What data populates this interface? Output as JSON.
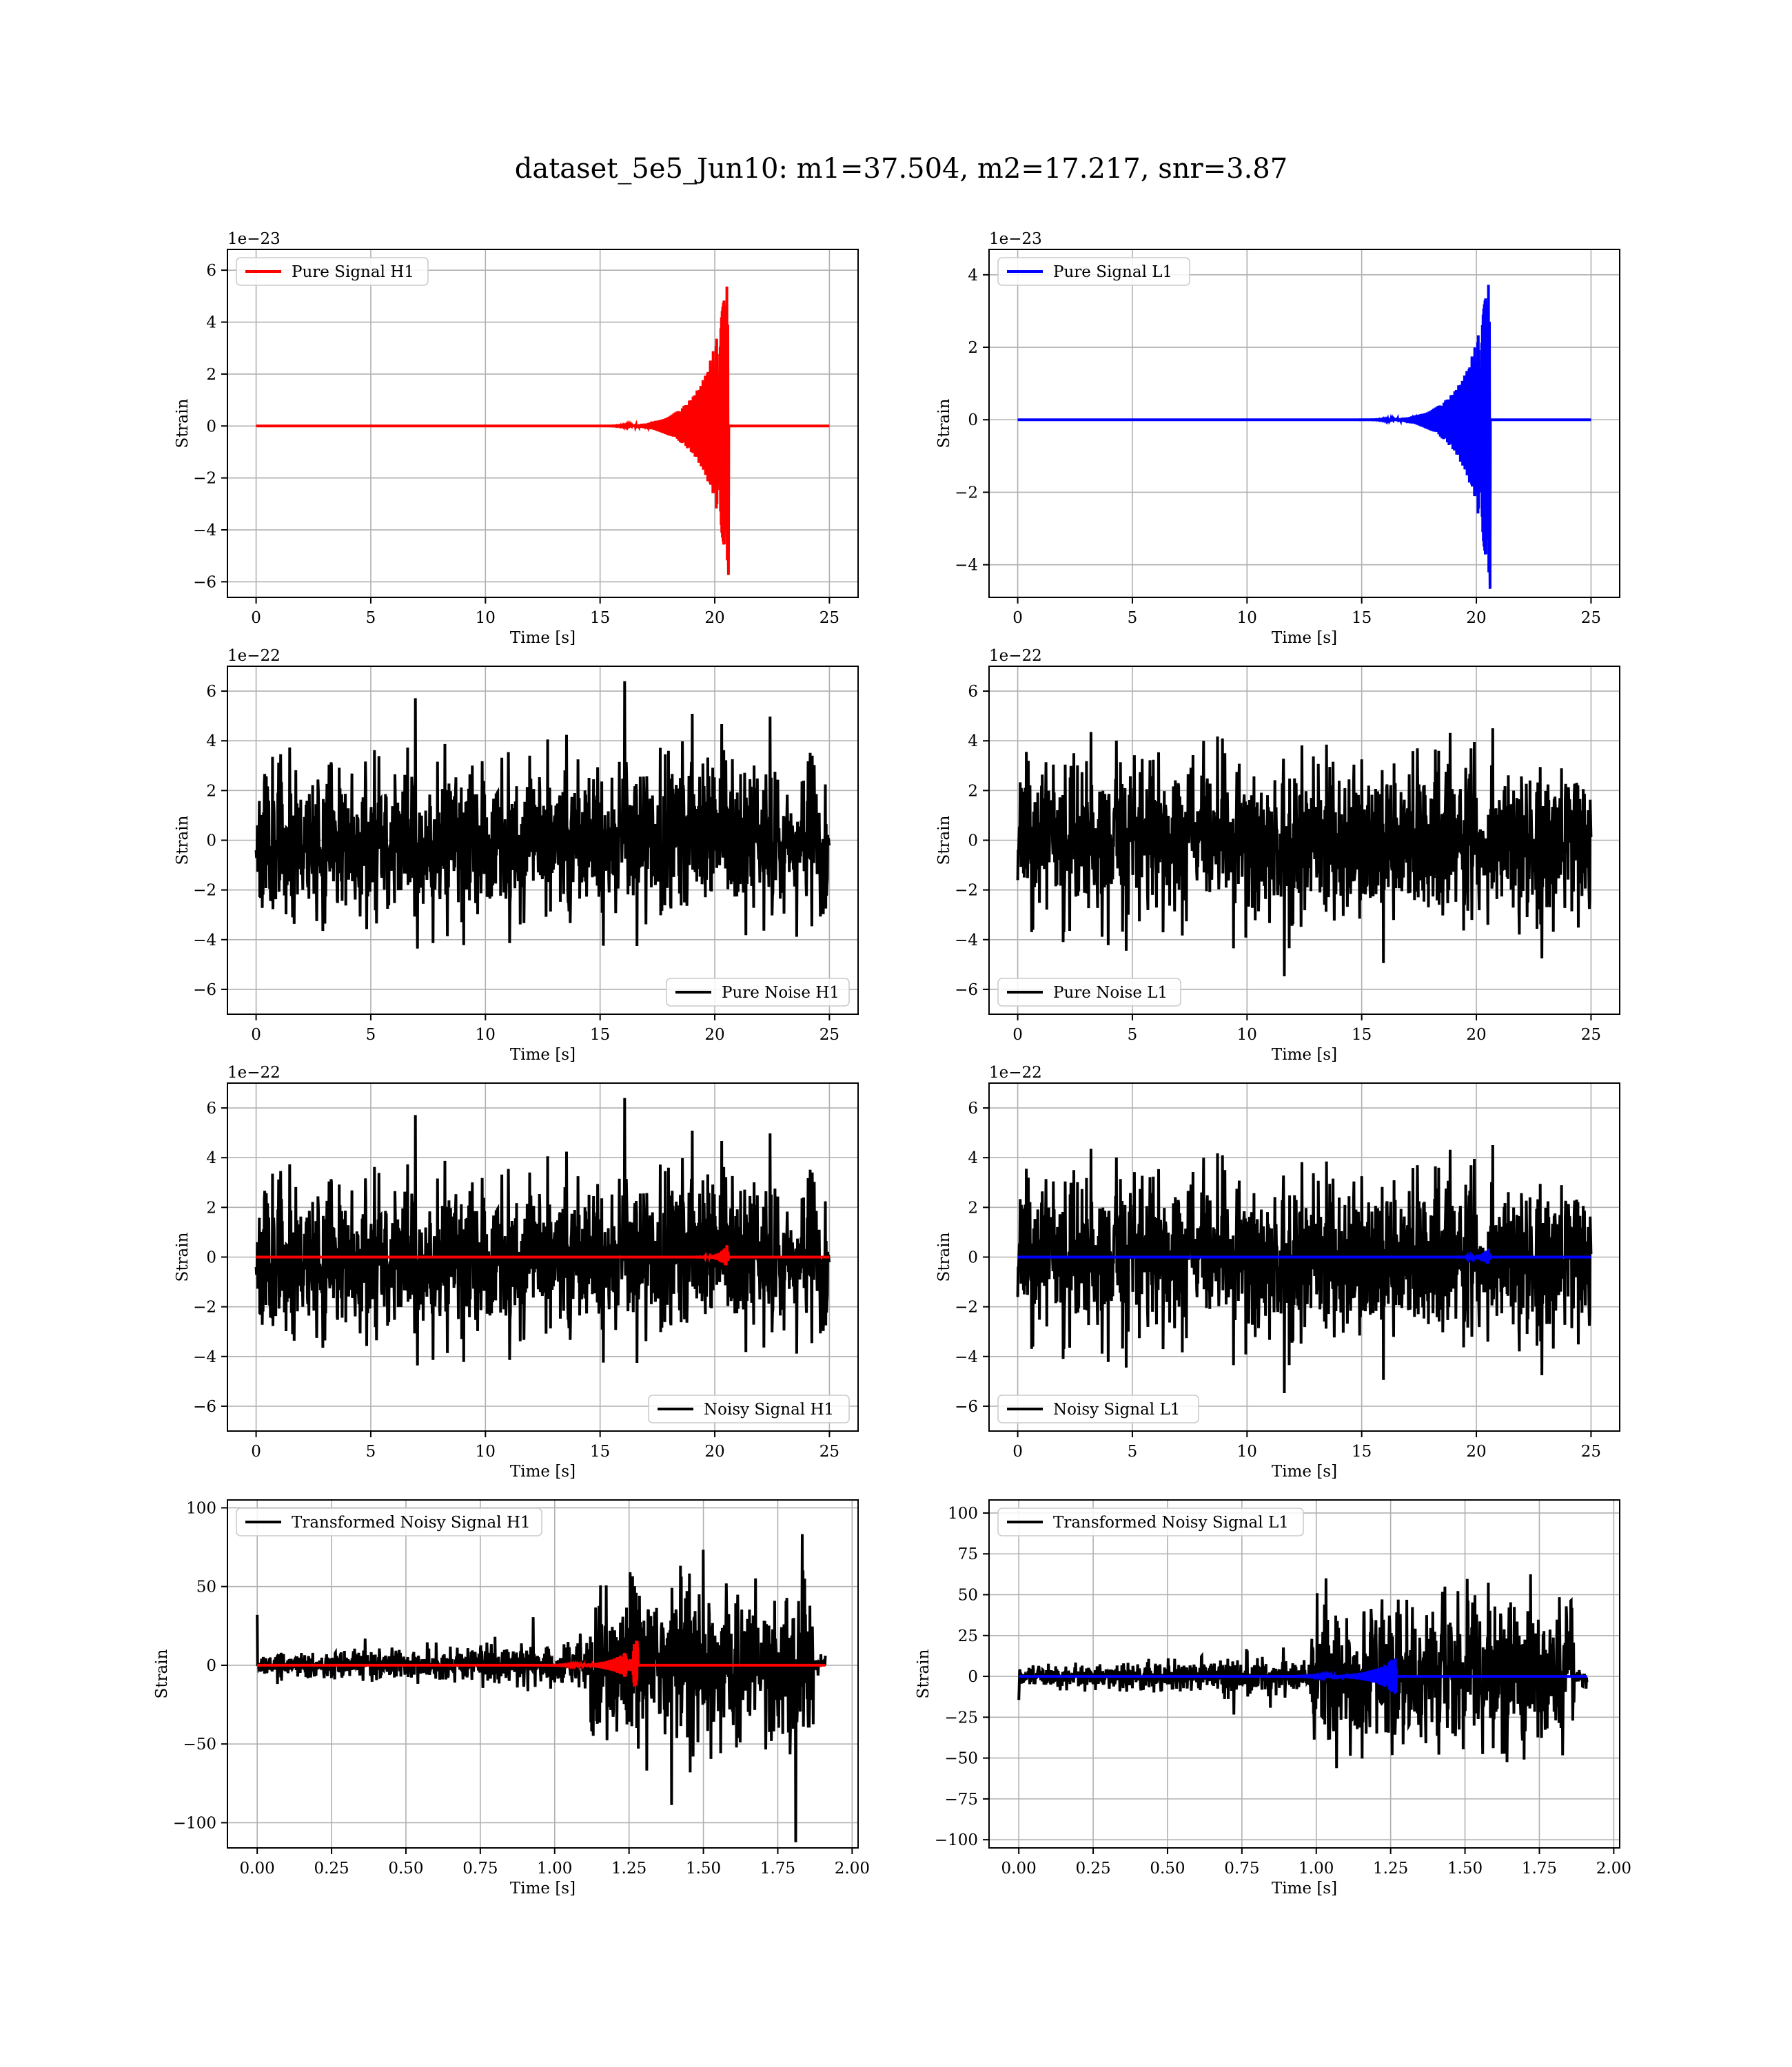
{
  "figure": {
    "title": "dataset_5e5_Jun10: m1=37.504, m2=17.217, snr=3.87"
  },
  "chart_data": [
    {
      "type": "line",
      "panel": "pure-signal-h1",
      "xlabel": "Time [s]",
      "ylabel": "Strain",
      "offset_text": "1e−23",
      "xlim": [
        -1.25,
        26.25
      ],
      "ylim": [
        -6.6,
        6.8
      ],
      "xticks": [
        0,
        5,
        10,
        15,
        20,
        25
      ],
      "xtick_labels": [
        "0",
        "5",
        "10",
        "15",
        "20",
        "25"
      ],
      "yticks": [
        -6,
        -4,
        -2,
        0,
        2,
        4,
        6
      ],
      "ytick_labels": [
        "−6",
        "−4",
        "−2",
        "0",
        "2",
        "4",
        "6"
      ],
      "grid": true,
      "legend_position": "upper left",
      "series": [
        {
          "name": "Pure Signal H1",
          "color": "#ff0000",
          "kind": "chirp",
          "params": {
            "t0": 0,
            "t1": 25,
            "tc": 20.6,
            "peak": 6.2,
            "trough": -5.9,
            "noise": 0,
            "onset": 0.72
          }
        }
      ]
    },
    {
      "type": "line",
      "panel": "pure-signal-l1",
      "xlabel": "Time [s]",
      "ylabel": "Strain",
      "offset_text": "1e−23",
      "xlim": [
        -1.25,
        26.25
      ],
      "ylim": [
        -4.9,
        4.7
      ],
      "xticks": [
        0,
        5,
        10,
        15,
        20,
        25
      ],
      "xtick_labels": [
        "0",
        "5",
        "10",
        "15",
        "20",
        "25"
      ],
      "yticks": [
        -4,
        -2,
        0,
        2,
        4
      ],
      "ytick_labels": [
        "−4",
        "−2",
        "0",
        "2",
        "4"
      ],
      "grid": true,
      "legend_position": "upper left",
      "series": [
        {
          "name": "Pure Signal L1",
          "color": "#0000ff",
          "kind": "chirp",
          "params": {
            "t0": 0,
            "t1": 25,
            "tc": 20.6,
            "peak": 4.3,
            "trough": -4.8,
            "noise": 0,
            "onset": 0.72
          }
        }
      ]
    },
    {
      "type": "line",
      "panel": "pure-noise-h1",
      "xlabel": "Time [s]",
      "ylabel": "Strain",
      "offset_text": "1e−22",
      "xlim": [
        -1.25,
        26.25
      ],
      "ylim": [
        -7.0,
        7.0
      ],
      "xticks": [
        0,
        5,
        10,
        15,
        20,
        25
      ],
      "xtick_labels": [
        "0",
        "5",
        "10",
        "15",
        "20",
        "25"
      ],
      "yticks": [
        -6,
        -4,
        -2,
        0,
        2,
        4,
        6
      ],
      "ytick_labels": [
        "−6",
        "−4",
        "−2",
        "0",
        "2",
        "4",
        "6"
      ],
      "grid": true,
      "legend_position": "lower right",
      "series": [
        {
          "name": "Pure Noise H1",
          "color": "#000000",
          "kind": "noise",
          "params": {
            "t0": 0,
            "t1": 25,
            "sigma": 1.45,
            "max": 6.4,
            "min": -6.9,
            "seed": 11
          }
        }
      ]
    },
    {
      "type": "line",
      "panel": "pure-noise-l1",
      "xlabel": "Time [s]",
      "ylabel": "Strain",
      "offset_text": "1e−22",
      "xlim": [
        -1.25,
        26.25
      ],
      "ylim": [
        -7.0,
        7.0
      ],
      "xticks": [
        0,
        5,
        10,
        15,
        20,
        25
      ],
      "xtick_labels": [
        "0",
        "5",
        "10",
        "15",
        "20",
        "25"
      ],
      "yticks": [
        -6,
        -4,
        -2,
        0,
        2,
        4,
        6
      ],
      "ytick_labels": [
        "−6",
        "−4",
        "−2",
        "0",
        "2",
        "4",
        "6"
      ],
      "grid": true,
      "legend_position": "lower left",
      "series": [
        {
          "name": "Pure Noise L1",
          "color": "#000000",
          "kind": "noise",
          "params": {
            "t0": 0,
            "t1": 25,
            "sigma": 1.45,
            "max": 6.4,
            "min": -6.8,
            "seed": 23
          }
        }
      ]
    },
    {
      "type": "line",
      "panel": "noisy-signal-h1",
      "xlabel": "Time [s]",
      "ylabel": "Strain",
      "offset_text": "1e−22",
      "xlim": [
        -1.25,
        26.25
      ],
      "ylim": [
        -7.0,
        7.0
      ],
      "xticks": [
        0,
        5,
        10,
        15,
        20,
        25
      ],
      "xtick_labels": [
        "0",
        "5",
        "10",
        "15",
        "20",
        "25"
      ],
      "yticks": [
        -6,
        -4,
        -2,
        0,
        2,
        4,
        6
      ],
      "ytick_labels": [
        "−6",
        "−4",
        "−2",
        "0",
        "2",
        "4",
        "6"
      ],
      "grid": true,
      "legend_position": "lower right",
      "series": [
        {
          "name": "Noisy Signal H1",
          "color": "#000000",
          "kind": "noise",
          "params": {
            "t0": 0,
            "t1": 25,
            "sigma": 1.45,
            "max": 6.4,
            "min": -6.9,
            "seed": 11
          }
        },
        {
          "name": "",
          "color": "#ff0000",
          "kind": "chirp",
          "params": {
            "t0": 0,
            "t1": 25,
            "tc": 20.6,
            "peak": 0.62,
            "trough": -0.59,
            "noise": 0,
            "onset": 0.9
          }
        }
      ]
    },
    {
      "type": "line",
      "panel": "noisy-signal-l1",
      "xlabel": "Time [s]",
      "ylabel": "Strain",
      "offset_text": "1e−22",
      "xlim": [
        -1.25,
        26.25
      ],
      "ylim": [
        -7.0,
        7.0
      ],
      "xticks": [
        0,
        5,
        10,
        15,
        20,
        25
      ],
      "xtick_labels": [
        "0",
        "5",
        "10",
        "15",
        "20",
        "25"
      ],
      "yticks": [
        -6,
        -4,
        -2,
        0,
        2,
        4,
        6
      ],
      "ytick_labels": [
        "−6",
        "−4",
        "−2",
        "0",
        "2",
        "4",
        "6"
      ],
      "grid": true,
      "legend_position": "lower left",
      "series": [
        {
          "name": "Noisy Signal L1",
          "color": "#000000",
          "kind": "noise",
          "params": {
            "t0": 0,
            "t1": 25,
            "sigma": 1.45,
            "max": 6.4,
            "min": -6.8,
            "seed": 23
          }
        },
        {
          "name": "",
          "color": "#0000ff",
          "kind": "chirp",
          "params": {
            "t0": 0,
            "t1": 25,
            "tc": 20.6,
            "peak": 0.43,
            "trough": -0.48,
            "noise": 0,
            "onset": 0.9
          }
        }
      ]
    },
    {
      "type": "line",
      "panel": "transformed-noisy-signal-h1",
      "xlabel": "Time [s]",
      "ylabel": "Strain",
      "offset_text": "",
      "xlim": [
        -0.1,
        2.02
      ],
      "ylim": [
        -116,
        105
      ],
      "xticks": [
        0,
        0.25,
        0.5,
        0.75,
        1.0,
        1.25,
        1.5,
        1.75,
        2.0
      ],
      "xtick_labels": [
        "0.00",
        "0.25",
        "0.50",
        "0.75",
        "1.00",
        "1.25",
        "1.50",
        "1.75",
        "2.00"
      ],
      "yticks": [
        -100,
        -50,
        0,
        50,
        100
      ],
      "ytick_labels": [
        "−100",
        "−50",
        "0",
        "50",
        "100"
      ],
      "grid": true,
      "legend_position": "upper left",
      "series": [
        {
          "name": "Transformed Noisy Signal H1",
          "color": "#000000",
          "kind": "whitened",
          "params": {
            "t0": 0,
            "t1": 1.91,
            "jump": 1.12,
            "end": 1.87,
            "low": 8,
            "high": 42,
            "max": 97,
            "min": -114,
            "seed": 5
          }
        },
        {
          "name": "",
          "color": "#ff0000",
          "kind": "chirp",
          "params": {
            "t0": 0,
            "t1": 1.91,
            "tc": 1.28,
            "peak": 18,
            "trough": -17,
            "noise": 0,
            "onset": 0.72
          }
        }
      ]
    },
    {
      "type": "line",
      "panel": "transformed-noisy-signal-l1",
      "xlabel": "Time [s]",
      "ylabel": "Strain",
      "offset_text": "",
      "xlim": [
        -0.1,
        2.02
      ],
      "ylim": [
        -105,
        108
      ],
      "xticks": [
        0,
        0.25,
        0.5,
        0.75,
        1.0,
        1.25,
        1.5,
        1.75,
        2.0
      ],
      "xtick_labels": [
        "0.00",
        "0.25",
        "0.50",
        "0.75",
        "1.00",
        "1.25",
        "1.50",
        "1.75",
        "2.00"
      ],
      "yticks": [
        -100,
        -75,
        -50,
        -25,
        0,
        25,
        50,
        75,
        100
      ],
      "ytick_labels": [
        "−100",
        "−75",
        "−50",
        "−25",
        "0",
        "25",
        "50",
        "75",
        "100"
      ],
      "grid": true,
      "legend_position": "upper left",
      "series": [
        {
          "name": "Transformed Noisy Signal L1",
          "color": "#000000",
          "kind": "whitened",
          "params": {
            "t0": 0,
            "t1": 1.91,
            "jump": 0.98,
            "end": 1.87,
            "low": 7,
            "high": 38,
            "max": 101,
            "min": -97,
            "seed": 9
          }
        },
        {
          "name": "",
          "color": "#0000ff",
          "kind": "chirp",
          "params": {
            "t0": 0,
            "t1": 1.91,
            "tc": 1.27,
            "peak": 13,
            "trough": -12,
            "noise": 0,
            "onset": 0.65
          }
        }
      ]
    }
  ]
}
